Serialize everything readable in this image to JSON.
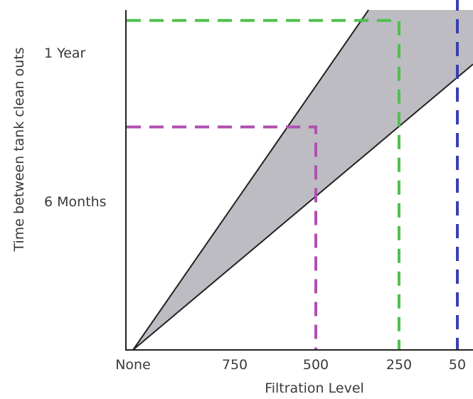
{
  "chart_data": {
    "type": "area",
    "xlabel": "Filtration Level",
    "ylabel": "Time between tank clean outs",
    "x_ticks": [
      "None",
      "750",
      "500",
      "250",
      "50"
    ],
    "y_ticks": [
      {
        "label": "6 Months",
        "months": 6
      },
      {
        "label": "1 Year",
        "months": 12
      }
    ],
    "xlim": [
      "None",
      "50"
    ],
    "ylim_months": [
      0,
      15
    ],
    "grid": false,
    "shaded_band": {
      "color": "#bcbcc2",
      "upper_boundary": [
        {
          "x": "None",
          "months": 0
        },
        {
          "x": "250",
          "months": 15.5
        }
      ],
      "lower_boundary": [
        {
          "x": "None",
          "months": 0
        },
        {
          "x": "50",
          "months": 11
        }
      ]
    },
    "series": [
      {
        "color": "#b04fb0",
        "x": "500",
        "months": 9
      },
      {
        "color": "#4fc04f",
        "x": "250",
        "months": 13.3
      },
      {
        "color": "#3a3fae",
        "x": "50",
        "months": 14.7
      }
    ]
  }
}
